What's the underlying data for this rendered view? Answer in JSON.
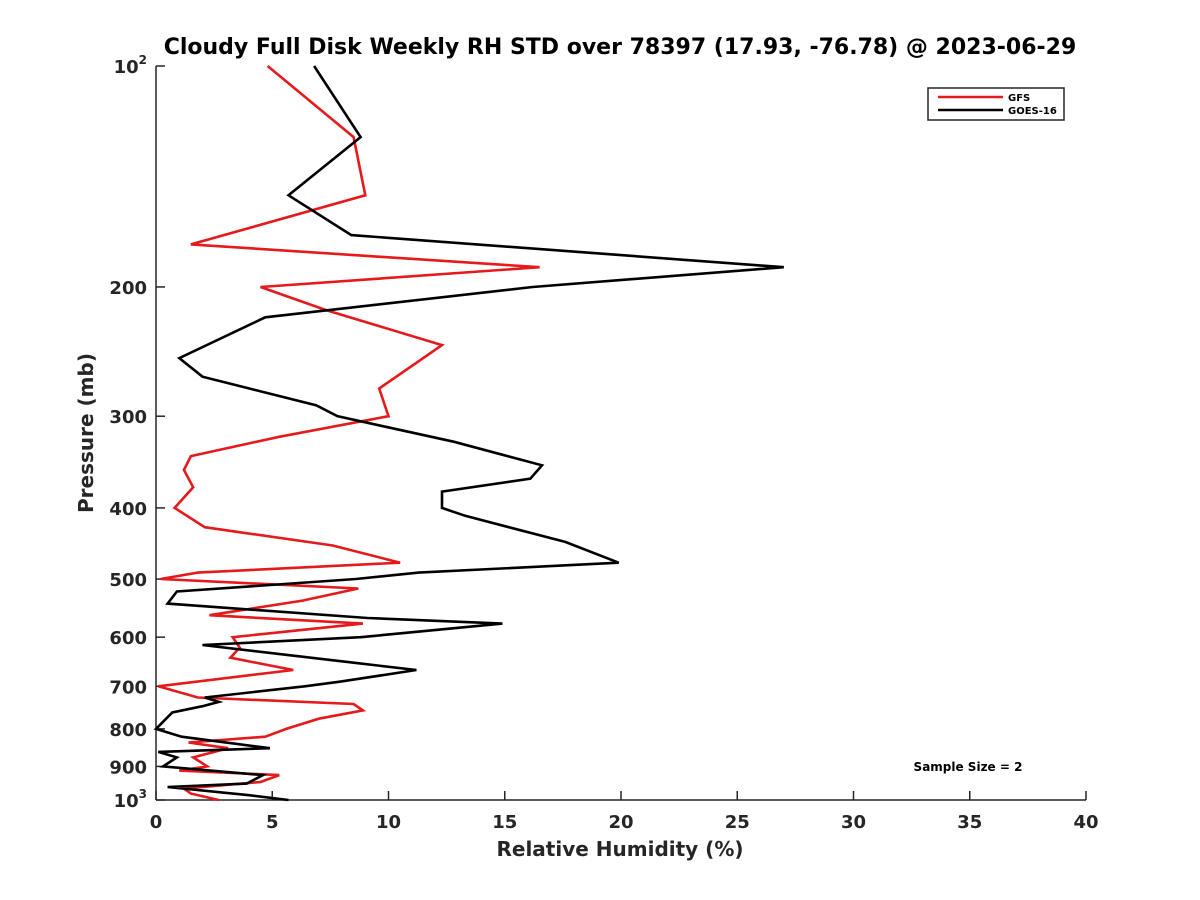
{
  "chart_data": {
    "type": "line",
    "title": "Cloudy Full Disk Weekly RH STD over 78397 (17.93, -76.78) @ 2023-06-29",
    "xlabel": "Relative Humidity (%)",
    "ylabel": "Pressure (mb)",
    "xlim": [
      0,
      40
    ],
    "ylim": [
      100,
      1000
    ],
    "yscale": "log",
    "y_reversed": true,
    "grid": false,
    "legend_position": "top-right",
    "xticks": [
      "0",
      "5",
      "10",
      "15",
      "20",
      "25",
      "30",
      "35",
      "40"
    ],
    "yticks": [
      {
        "value": 100,
        "base": "10",
        "exp": "2"
      },
      {
        "value": 200,
        "label": "200"
      },
      {
        "value": 300,
        "label": "300"
      },
      {
        "value": 400,
        "label": "400"
      },
      {
        "value": 500,
        "label": "500"
      },
      {
        "value": 600,
        "label": "600"
      },
      {
        "value": 700,
        "label": "700"
      },
      {
        "value": 800,
        "label": "800"
      },
      {
        "value": 900,
        "label": "900"
      },
      {
        "value": 1000,
        "base": "10",
        "exp": "3"
      }
    ],
    "annotation": "Sample Size = 2",
    "series": [
      {
        "name": "GFS",
        "color": "#e41a1c",
        "points": [
          [
            4.8,
            100
          ],
          [
            8.5,
            125
          ],
          [
            9.0,
            150
          ],
          [
            1.5,
            175
          ],
          [
            16.5,
            188
          ],
          [
            4.5,
            200
          ],
          [
            7.3,
            215
          ],
          [
            12.3,
            240
          ],
          [
            9.6,
            275
          ],
          [
            10.0,
            300
          ],
          [
            5.3,
            320
          ],
          [
            1.5,
            340
          ],
          [
            1.2,
            355
          ],
          [
            1.6,
            375
          ],
          [
            0.8,
            400
          ],
          [
            2.1,
            425
          ],
          [
            7.6,
            450
          ],
          [
            10.5,
            475
          ],
          [
            1.8,
            490
          ],
          [
            0.2,
            500
          ],
          [
            8.7,
            515
          ],
          [
            6.3,
            535
          ],
          [
            2.3,
            560
          ],
          [
            8.9,
            575
          ],
          [
            3.3,
            600
          ],
          [
            3.6,
            620
          ],
          [
            3.2,
            640
          ],
          [
            5.9,
            665
          ],
          [
            0.1,
            700
          ],
          [
            1.8,
            725
          ],
          [
            8.5,
            740
          ],
          [
            8.9,
            755
          ],
          [
            7.0,
            775
          ],
          [
            5.6,
            800
          ],
          [
            4.7,
            820
          ],
          [
            1.4,
            835
          ],
          [
            3.1,
            850
          ],
          [
            1.6,
            875
          ],
          [
            2.2,
            900
          ],
          [
            1.0,
            912
          ],
          [
            5.3,
            925
          ],
          [
            4.5,
            945
          ],
          [
            1.2,
            965
          ],
          [
            1.5,
            980
          ],
          [
            2.7,
            1000
          ]
        ]
      },
      {
        "name": "GOES-16",
        "color": "#000000",
        "points": [
          [
            6.8,
            100
          ],
          [
            8.8,
            125
          ],
          [
            5.7,
            150
          ],
          [
            8.4,
            170
          ],
          [
            27.0,
            188
          ],
          [
            16.2,
            200
          ],
          [
            4.7,
            220
          ],
          [
            1.0,
            250
          ],
          [
            2.0,
            265
          ],
          [
            6.9,
            290
          ],
          [
            7.8,
            300
          ],
          [
            12.8,
            325
          ],
          [
            16.6,
            350
          ],
          [
            16.1,
            365
          ],
          [
            12.3,
            380
          ],
          [
            12.3,
            400
          ],
          [
            13.3,
            410
          ],
          [
            17.6,
            445
          ],
          [
            19.9,
            475
          ],
          [
            11.3,
            490
          ],
          [
            8.6,
            500
          ],
          [
            0.9,
            520
          ],
          [
            0.5,
            540
          ],
          [
            9.1,
            565
          ],
          [
            14.9,
            575
          ],
          [
            8.8,
            600
          ],
          [
            2.0,
            615
          ],
          [
            8.5,
            650
          ],
          [
            11.2,
            665
          ],
          [
            7.9,
            690
          ],
          [
            6.4,
            700
          ],
          [
            2.1,
            725
          ],
          [
            2.7,
            735
          ],
          [
            2.0,
            745
          ],
          [
            0.7,
            760
          ],
          [
            0.0,
            800
          ],
          [
            1.1,
            820
          ],
          [
            4.9,
            850
          ],
          [
            0.1,
            860
          ],
          [
            0.9,
            875
          ],
          [
            0.3,
            900
          ],
          [
            4.6,
            925
          ],
          [
            3.9,
            950
          ],
          [
            0.5,
            960
          ],
          [
            4.0,
            985
          ],
          [
            5.7,
            1000
          ]
        ]
      }
    ]
  }
}
